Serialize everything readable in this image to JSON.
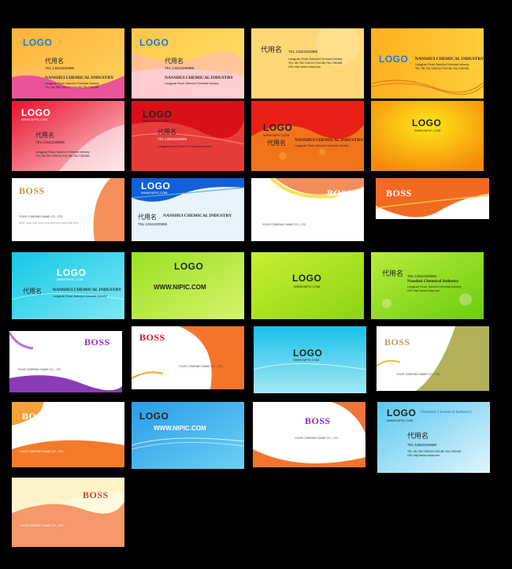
{
  "colors": {
    "background": "#000000"
  },
  "text": {
    "logo": "LOGO",
    "boss": "BOSS",
    "url": "WWW.NIPIC.COM",
    "name": "代用名",
    "tel": "TEL:13522200888",
    "company": "NANSHUI CHEMICAL INDUSTRY",
    "company_title": "Nanshui Chemical Industry",
    "address": "Langyuan Road, Nanshui Chemical Industry",
    "fax": "TEL: 86-756-7260131   FAX:86-756-7260188",
    "email": "URL:http://www.zhbpt.com",
    "your_company": "YOUR COMPANY NAME CO., LTD.",
    "name_label": "NAME",
    "filler": "ADD: your add here your add here your add here"
  }
}
